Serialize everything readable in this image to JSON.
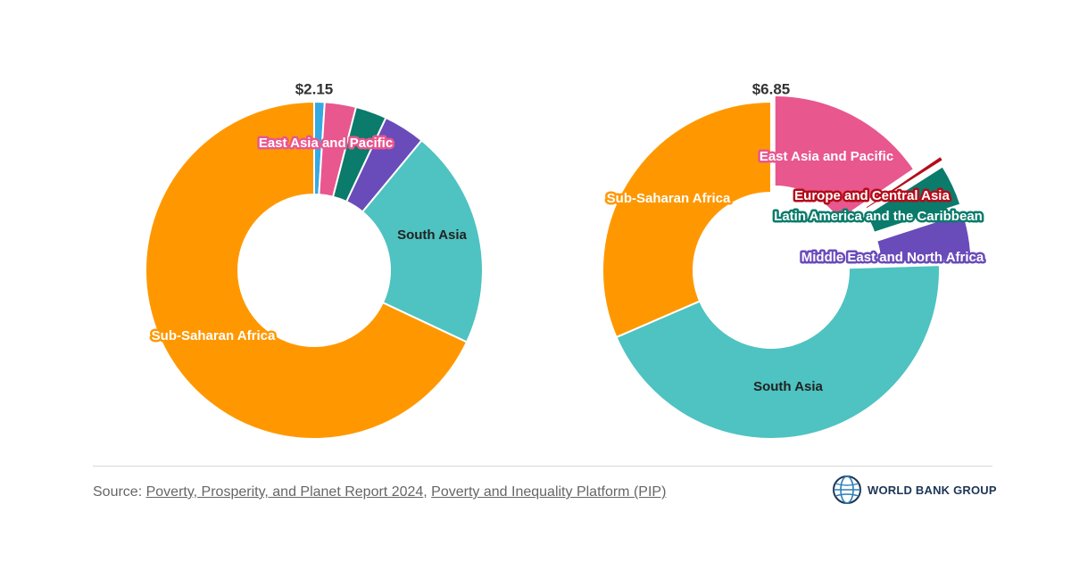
{
  "chart_data": [
    {
      "type": "donut",
      "title": "$2.15",
      "series": [
        {
          "region": "Europe and Central Asia",
          "value": 1.0,
          "color": "#36A9E1",
          "label": ""
        },
        {
          "region": "East Asia and Pacific",
          "value": 3.0,
          "color": "#E8578E",
          "label": "East Asia and Pacific"
        },
        {
          "region": "Latin America and the Caribbean",
          "value": 3.0,
          "color": "#0B7B6B",
          "label": ""
        },
        {
          "region": "Middle East and North Africa",
          "value": 4.0,
          "color": "#6A4BBA",
          "label": ""
        },
        {
          "region": "South Asia",
          "value": 21.0,
          "color": "#4EC3C1",
          "label": "South Asia"
        },
        {
          "region": "Sub-Saharan Africa",
          "value": 68.0,
          "color": "#FF9800",
          "label": "Sub-Saharan Africa"
        }
      ]
    },
    {
      "type": "donut",
      "title": "$6.85",
      "series": [
        {
          "region": "East Asia and Pacific",
          "value": 15.5,
          "color": "#E8578E",
          "label": "East Asia and Pacific"
        },
        {
          "region": "Europe and Central Asia",
          "value": 0.5,
          "color": "#B30D1A",
          "label": "Europe and Central Asia"
        },
        {
          "region": "Latin America and the Caribbean",
          "value": 4.0,
          "color": "#0B7B6B",
          "label": "Latin America and the Caribbean"
        },
        {
          "region": "Middle East and North Africa",
          "value": 4.5,
          "color": "#6A4BBA",
          "label": "Middle East and North Africa"
        },
        {
          "region": "South Asia",
          "value": 44.0,
          "color": "#4EC3C1",
          "label": "South Asia"
        },
        {
          "region": "Sub-Saharan Africa",
          "value": 31.5,
          "color": "#FF9800",
          "label": "Sub-Saharan Africa"
        }
      ]
    }
  ],
  "footer": {
    "source_prefix": "Source: ",
    "link1": "Poverty, Prosperity, and Planet Report 2024",
    "separator": ", ",
    "link2": "Poverty and Inequality Platform (PIP)",
    "brand": "WORLD BANK GROUP"
  }
}
